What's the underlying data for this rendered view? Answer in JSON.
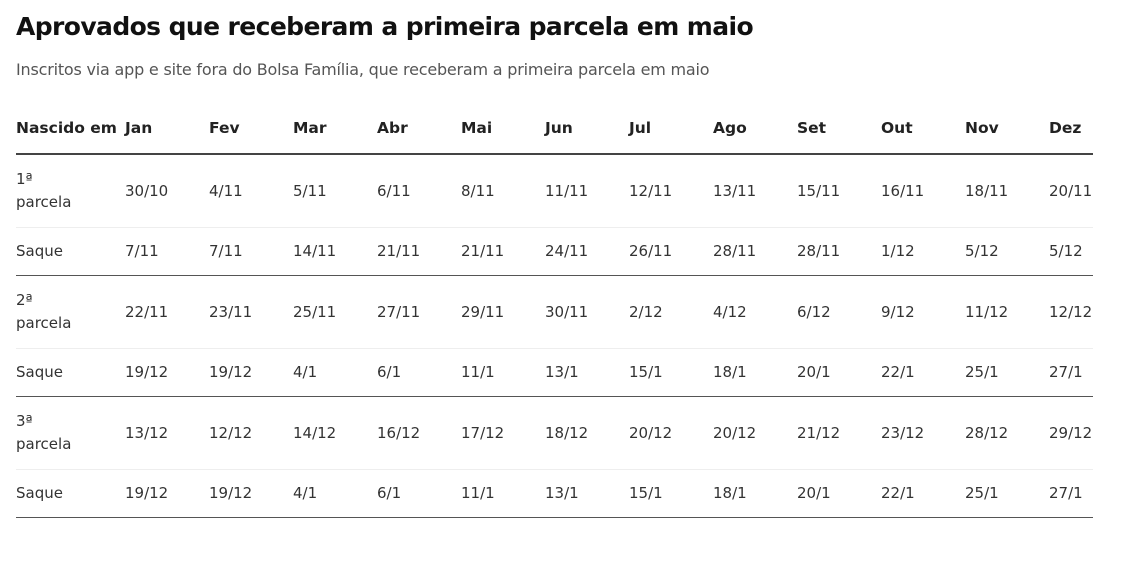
{
  "title": "Aprovados que receberam a primeira parcela em maio",
  "subtitle": "Inscritos via app e site fora do Bolsa Família, que receberam a primeira parcela em maio",
  "chart_data": {
    "type": "table",
    "columns": [
      "Nascido em",
      "Jan",
      "Fev",
      "Mar",
      "Abr",
      "Mai",
      "Jun",
      "Jul",
      "Ago",
      "Set",
      "Out",
      "Nov",
      "Dez"
    ],
    "rows": [
      {
        "label": "1ª parcela",
        "values": [
          "30/10",
          "4/11",
          "5/11",
          "6/11",
          "8/11",
          "11/11",
          "12/11",
          "13/11",
          "15/11",
          "16/11",
          "18/11",
          "20/11"
        ]
      },
      {
        "label": "Saque",
        "values": [
          "7/11",
          "7/11",
          "14/11",
          "21/11",
          "21/11",
          "24/11",
          "26/11",
          "28/11",
          "28/11",
          "1/12",
          "5/12",
          "5/12"
        ]
      },
      {
        "label": "2ª parcela",
        "values": [
          "22/11",
          "23/11",
          "25/11",
          "27/11",
          "29/11",
          "30/11",
          "2/12",
          "4/12",
          "6/12",
          "9/12",
          "11/12",
          "12/12"
        ]
      },
      {
        "label": "Saque",
        "values": [
          "19/12",
          "19/12",
          "4/1",
          "6/1",
          "11/1",
          "13/1",
          "15/1",
          "18/1",
          "20/1",
          "22/1",
          "25/1",
          "27/1"
        ]
      },
      {
        "label": "3ª parcela",
        "values": [
          "13/12",
          "12/12",
          "14/12",
          "16/12",
          "17/12",
          "18/12",
          "20/12",
          "20/12",
          "21/12",
          "23/12",
          "28/12",
          "29/12"
        ]
      },
      {
        "label": "Saque",
        "values": [
          "19/12",
          "19/12",
          "4/1",
          "6/1",
          "11/1",
          "13/1",
          "15/1",
          "18/1",
          "20/1",
          "22/1",
          "25/1",
          "27/1"
        ]
      }
    ]
  }
}
